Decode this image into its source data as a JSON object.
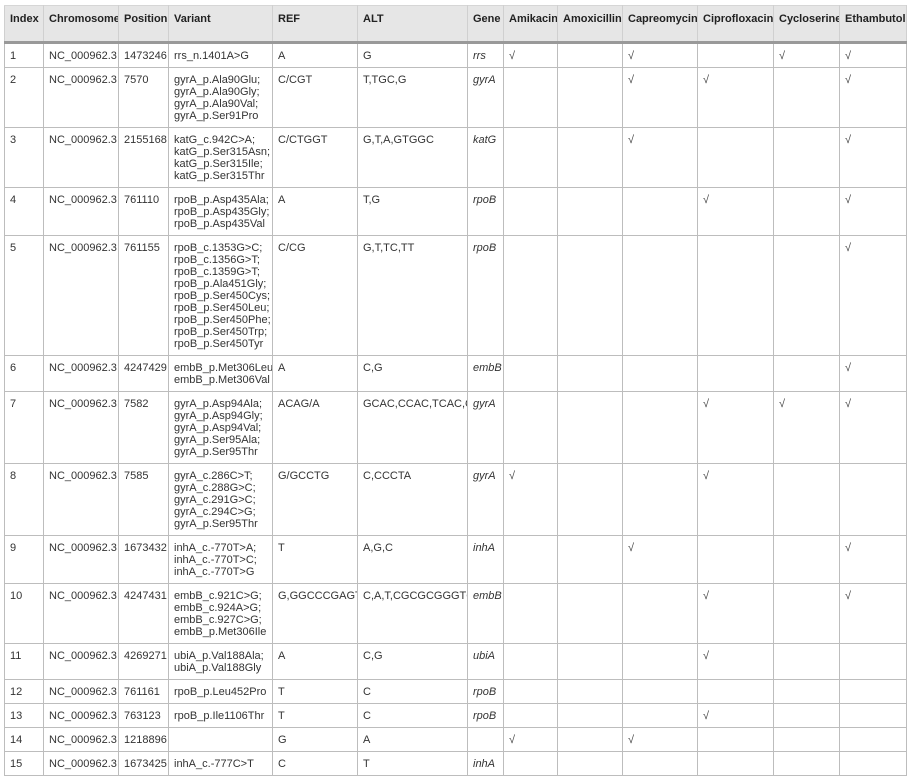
{
  "table": {
    "columns": [
      "Index",
      "Chromosome",
      "Position",
      "Variant",
      "REF",
      "ALT",
      "Gene",
      "Amikacin",
      "Amoxicillin",
      "Capreomycin",
      "Ciprofloxacin",
      "Cycloserine",
      "Ethambutol"
    ],
    "check_symbol": "√",
    "rows": [
      {
        "index": "1",
        "chromosome": "NC_000962.3",
        "position": "1473246",
        "variant": [
          "rrs_n.1401A>G"
        ],
        "ref": "A",
        "alt": "G",
        "gene": "rrs",
        "drugs": [
          true,
          false,
          true,
          false,
          true,
          true
        ]
      },
      {
        "index": "2",
        "chromosome": "NC_000962.3",
        "position": "7570",
        "variant": [
          "gyrA_p.Ala90Glu;",
          "gyrA_p.Ala90Gly;",
          "gyrA_p.Ala90Val;",
          "gyrA_p.Ser91Pro"
        ],
        "ref": "C/CGT",
        "alt": "T,TGC,G",
        "gene": "gyrA",
        "drugs": [
          false,
          false,
          true,
          true,
          false,
          true
        ]
      },
      {
        "index": "3",
        "chromosome": "NC_000962.3",
        "position": "2155168",
        "variant": [
          "katG_c.942C>A;",
          "katG_p.Ser315Asn;",
          "katG_p.Ser315Ile;",
          "katG_p.Ser315Thr"
        ],
        "ref": "C/CTGGT",
        "alt": "G,T,A,GTGGC",
        "gene": "katG",
        "drugs": [
          false,
          false,
          true,
          false,
          false,
          true
        ]
      },
      {
        "index": "4",
        "chromosome": "NC_000962.3",
        "position": "761110",
        "variant": [
          "rpoB_p.Asp435Ala;",
          "rpoB_p.Asp435Gly;",
          "rpoB_p.Asp435Val"
        ],
        "ref": "A",
        "alt": "T,G",
        "gene": "rpoB",
        "drugs": [
          false,
          false,
          false,
          true,
          false,
          true
        ]
      },
      {
        "index": "5",
        "chromosome": "NC_000962.3",
        "position": "761155",
        "variant": [
          "rpoB_c.1353G>C;",
          "rpoB_c.1356G>T;",
          "rpoB_c.1359G>T;",
          "rpoB_p.Ala451Gly;",
          "rpoB_p.Ser450Cys;",
          "rpoB_p.Ser450Leu;",
          "rpoB_p.Ser450Phe;",
          "rpoB_p.Ser450Trp;",
          "rpoB_p.Ser450Tyr"
        ],
        "ref": "C/CG",
        "alt": "G,T,TC,TT",
        "gene": "rpoB",
        "drugs": [
          false,
          false,
          false,
          false,
          false,
          true
        ]
      },
      {
        "index": "6",
        "chromosome": "NC_000962.3",
        "position": "4247429",
        "variant": [
          "embB_p.Met306Leu;",
          "embB_p.Met306Val"
        ],
        "ref": "A",
        "alt": "C,G",
        "gene": "embB",
        "drugs": [
          false,
          false,
          false,
          false,
          false,
          true
        ]
      },
      {
        "index": "7",
        "chromosome": "NC_000962.3",
        "position": "7582",
        "variant": [
          "gyrA_p.Asp94Ala;",
          "gyrA_p.Asp94Gly;",
          "gyrA_p.Asp94Val;",
          "gyrA_p.Ser95Ala;",
          "gyrA_p.Ser95Thr"
        ],
        "ref": "ACAG/A",
        "alt": "GCAC,CCAC,TCAC,C,G",
        "gene": "gyrA",
        "drugs": [
          false,
          false,
          false,
          true,
          true,
          true
        ]
      },
      {
        "index": "8",
        "chromosome": "NC_000962.3",
        "position": "7585",
        "variant": [
          "gyrA_c.286C>T;",
          "gyrA_c.288G>C;",
          "gyrA_c.291G>C;",
          "gyrA_c.294C>G;",
          "gyrA_p.Ser95Thr"
        ],
        "ref": "G/GCCTG",
        "alt": "C,CCCTA",
        "gene": "gyrA",
        "drugs": [
          true,
          false,
          false,
          true,
          false,
          false
        ]
      },
      {
        "index": "9",
        "chromosome": "NC_000962.3",
        "position": "1673432",
        "variant": [
          "inhA_c.-770T>A;",
          "inhA_c.-770T>C;",
          "inhA_c.-770T>G"
        ],
        "ref": "T",
        "alt": "A,G,C",
        "gene": "inhA",
        "drugs": [
          false,
          false,
          true,
          false,
          false,
          true
        ]
      },
      {
        "index": "10",
        "chromosome": "NC_000962.3",
        "position": "4247431",
        "variant": [
          "embB_c.921C>G;",
          "embB_c.924A>G;",
          "embB_c.927C>G;",
          "embB_p.Met306Ile"
        ],
        "ref": "G,GGCCCGAGTC",
        "alt": "C,A,T,CGCGCGGGTG",
        "gene": "embB",
        "drugs": [
          false,
          false,
          false,
          true,
          false,
          true
        ]
      },
      {
        "index": "11",
        "chromosome": "NC_000962.3",
        "position": "4269271",
        "variant": [
          "ubiA_p.Val188Ala;",
          "ubiA_p.Val188Gly"
        ],
        "ref": "A",
        "alt": "C,G",
        "gene": "ubiA",
        "drugs": [
          false,
          false,
          false,
          true,
          false,
          false
        ]
      },
      {
        "index": "12",
        "chromosome": "NC_000962.3",
        "position": "761161",
        "variant": [
          "rpoB_p.Leu452Pro"
        ],
        "ref": "T",
        "alt": "C",
        "gene": "rpoB",
        "drugs": [
          false,
          false,
          false,
          false,
          false,
          false
        ]
      },
      {
        "index": "13",
        "chromosome": "NC_000962.3",
        "position": "763123",
        "variant": [
          "rpoB_p.Ile1106Thr"
        ],
        "ref": "T",
        "alt": "C",
        "gene": "rpoB",
        "drugs": [
          false,
          false,
          false,
          true,
          false,
          false
        ]
      },
      {
        "index": "14",
        "chromosome": "NC_000962.3",
        "position": "1218896",
        "variant": [],
        "ref": "G",
        "alt": "A",
        "gene": "",
        "drugs": [
          true,
          false,
          true,
          false,
          false,
          false
        ]
      },
      {
        "index": "15",
        "chromosome": "NC_000962.3",
        "position": "1673425",
        "variant": [
          "inhA_c.-777C>T"
        ],
        "ref": "C",
        "alt": "T",
        "gene": "inhA",
        "drugs": [
          false,
          false,
          false,
          false,
          false,
          false
        ]
      }
    ]
  }
}
